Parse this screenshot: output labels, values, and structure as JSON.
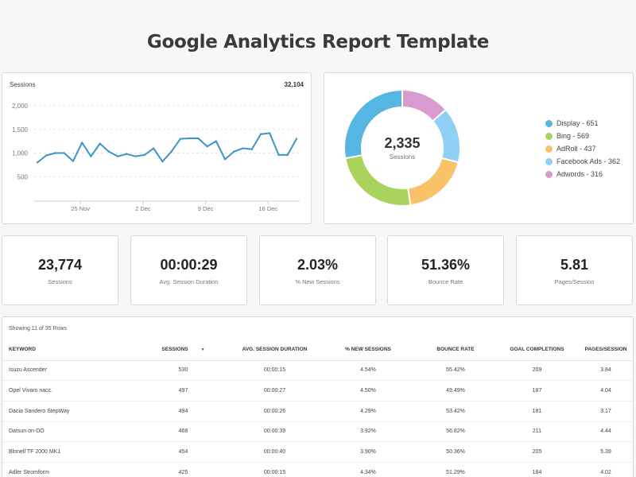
{
  "title": "Google Analytics Report Template",
  "sessions_chart": {
    "label": "Sessions",
    "total": "32,104",
    "y_ticks": [
      "2,000",
      "1,500",
      "1,000",
      "500"
    ],
    "x_ticks": [
      "25 Nov",
      "2 Dec",
      "9 Dec",
      "16 Dec"
    ],
    "line_color": "#3d94c8"
  },
  "donut": {
    "center_value": "2,335",
    "center_label": "Sessions",
    "legend": [
      {
        "text": "Display - 651",
        "color": "#55b6e4"
      },
      {
        "text": "Bing - 569",
        "color": "#a9d35a"
      },
      {
        "text": "AdRoll - 437",
        "color": "#f7c268"
      },
      {
        "text": "Facebook Ads - 362",
        "color": "#8fd1f6"
      },
      {
        "text": "Adwords - 316",
        "color": "#d99ad0"
      }
    ]
  },
  "kpis": [
    {
      "value": "23,774",
      "label": "Sessions"
    },
    {
      "value": "00:00:29",
      "label": "Avg. Session Duration"
    },
    {
      "value": "2.03%",
      "label": "% New Sessions"
    },
    {
      "value": "51.36%",
      "label": "Bounce Rate"
    },
    {
      "value": "5.81",
      "label": "Pages/Session"
    }
  ],
  "table": {
    "caption": "Showing 11 of 35 Rows",
    "headers": [
      "KEYWORD",
      "SESSIONS",
      "AVG. SESSION DURATION",
      "% NEW SESSIONS",
      "BOUNCE RATE",
      "GOAL COMPLETIONS",
      "PAGES/SESSION"
    ],
    "rows": [
      [
        "Isuzu Ascender",
        "530",
        "00:00:15",
        "4.54%",
        "55.42%",
        "209",
        "3.84"
      ],
      [
        "Opel Vivaro nacc.",
        "497",
        "00:00:27",
        "4.50%",
        "49.49%",
        "187",
        "4.04"
      ],
      [
        "Dacia Sandero StepWay",
        "494",
        "00:00:26",
        "4.29%",
        "53.42%",
        "181",
        "3.17"
      ],
      [
        "Datsun on-DO",
        "468",
        "00:00:39",
        "3.92%",
        "56.82%",
        "211",
        "4.44"
      ],
      [
        "Blonell TF 2000 MK1",
        "454",
        "00:00:40",
        "3.90%",
        "50.36%",
        "205",
        "5.39"
      ],
      [
        "Adler Stromform",
        "425",
        "00:00:15",
        "4.34%",
        "51.29%",
        "184",
        "4.02"
      ]
    ]
  },
  "chart_data": [
    {
      "type": "line",
      "title": "Sessions",
      "ylim": [
        0,
        2000
      ],
      "x_tick_labels": [
        "25 Nov",
        "2 Dec",
        "9 Dec",
        "16 Dec"
      ],
      "series": [
        {
          "values": [
            800,
            950,
            1000,
            1000,
            830,
            1220,
            930,
            1200,
            1030,
            930,
            980,
            930,
            960,
            1100,
            820,
            1030,
            1300,
            1310,
            1310,
            1140,
            1250,
            870,
            1030,
            1100,
            1080,
            1400,
            1420,
            960,
            960,
            1300
          ]
        }
      ]
    },
    {
      "type": "pie",
      "center_value": "2,335",
      "categories": [
        "Display",
        "Bing",
        "AdRoll",
        "Facebook Ads",
        "Adwords"
      ],
      "values": [
        651,
        569,
        437,
        362,
        316
      ]
    }
  ]
}
